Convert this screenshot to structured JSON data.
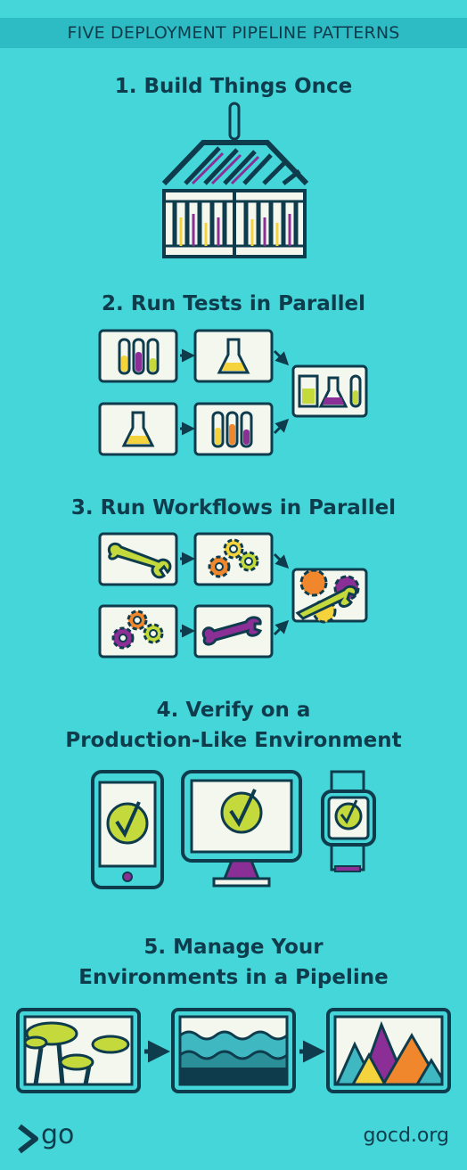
{
  "title": "FIVE DEPLOYMENT PIPELINE PATTERNS",
  "patterns": [
    {
      "heading_line1": "1. Build Things Once",
      "heading_line2": ""
    },
    {
      "heading_line1": "2. Run Tests in Parallel",
      "heading_line2": ""
    },
    {
      "heading_line1": "3. Run Workflows in Parallel",
      "heading_line2": ""
    },
    {
      "heading_line1": "4. Verify on a",
      "heading_line2": "Production-Like Environment"
    },
    {
      "heading_line1": "5. Manage Your",
      "heading_line2": "Environments in a Pipeline"
    }
  ],
  "footer": {
    "logo_text": "go",
    "url": "gocd.org"
  },
  "colors": {
    "background": "#45d6d9",
    "banner": "#2ebcc4",
    "navy": "#0f3c4d",
    "lime": "#c4d93b",
    "purple": "#8b2f97",
    "orange": "#f0872c",
    "yellow": "#f5d33d",
    "teal": "#3fb8c1"
  },
  "icons": [
    "container-icon",
    "test-tube-icon",
    "flask-icon",
    "wrench-icon",
    "gears-icon",
    "phone-icon",
    "monitor-icon",
    "smartwatch-icon",
    "check-icon",
    "trees-landscape-icon",
    "water-landscape-icon",
    "mountains-landscape-icon",
    "arrow-icon",
    "go-logo-icon"
  ]
}
